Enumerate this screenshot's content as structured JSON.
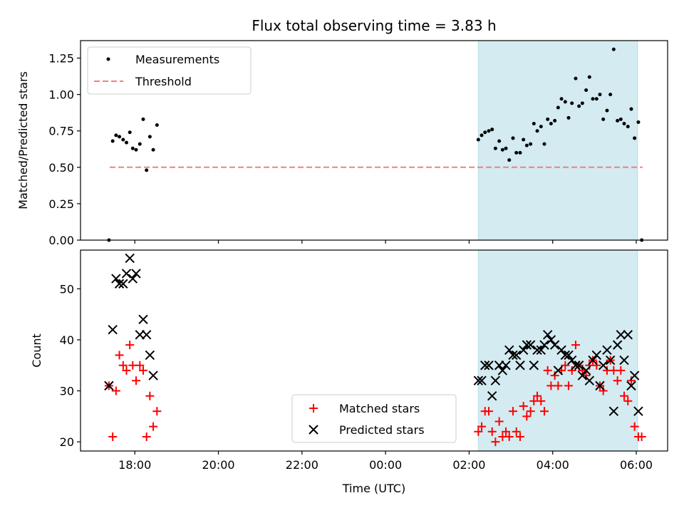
{
  "chart_data": {
    "type": "scatter",
    "title": "Flux total observing time = 3.83 h",
    "xlabel": "Time (UTC)",
    "x_ticks": [
      "18:00",
      "20:00",
      "22:00",
      "00:00",
      "02:00",
      "04:00",
      "06:00"
    ],
    "x_tick_hours": [
      18,
      20,
      22,
      24,
      26,
      28,
      30
    ],
    "xlim_hours": [
      16.7,
      30.75
    ],
    "shaded_interval_hours": [
      26.22,
      30.03
    ],
    "shade_color": "#d3ebf1",
    "panels": [
      {
        "ylabel": "Matched/Predicted stars",
        "ylim": [
          0,
          1.37
        ],
        "y_ticks": [
          "0.00",
          "0.25",
          "0.50",
          "0.75",
          "1.00",
          "1.25"
        ],
        "y_tick_values": [
          0,
          0.25,
          0.5,
          0.75,
          1.0,
          1.25
        ],
        "legend_position": "upper-left",
        "legend": [
          "Measurements",
          "Threshold"
        ],
        "threshold": {
          "name": "Threshold",
          "value": 0.5,
          "x_range_hours": [
            17.4,
            30.15
          ],
          "color": "#f08080",
          "style": "dashed"
        },
        "series": [
          {
            "name": "Measurements",
            "marker": "dot",
            "color": "#000000",
            "points": [
              [
                17.38,
                0.0
              ],
              [
                17.47,
                0.68
              ],
              [
                17.55,
                0.72
              ],
              [
                17.63,
                0.71
              ],
              [
                17.72,
                0.69
              ],
              [
                17.8,
                0.67
              ],
              [
                17.88,
                0.74
              ],
              [
                17.95,
                0.63
              ],
              [
                18.03,
                0.62
              ],
              [
                18.12,
                0.66
              ],
              [
                18.2,
                0.83
              ],
              [
                18.28,
                0.48
              ],
              [
                18.36,
                0.71
              ],
              [
                18.44,
                0.62
              ],
              [
                18.53,
                0.79
              ],
              [
                26.22,
                0.69
              ],
              [
                26.3,
                0.72
              ],
              [
                26.38,
                0.74
              ],
              [
                26.47,
                0.75
              ],
              [
                26.55,
                0.76
              ],
              [
                26.63,
                0.63
              ],
              [
                26.72,
                0.68
              ],
              [
                26.8,
                0.62
              ],
              [
                26.88,
                0.63
              ],
              [
                26.96,
                0.55
              ],
              [
                27.05,
                0.7
              ],
              [
                27.13,
                0.6
              ],
              [
                27.22,
                0.6
              ],
              [
                27.3,
                0.69
              ],
              [
                27.38,
                0.65
              ],
              [
                27.47,
                0.66
              ],
              [
                27.55,
                0.8
              ],
              [
                27.63,
                0.75
              ],
              [
                27.72,
                0.78
              ],
              [
                27.8,
                0.66
              ],
              [
                27.88,
                0.83
              ],
              [
                27.96,
                0.8
              ],
              [
                28.05,
                0.82
              ],
              [
                28.13,
                0.91
              ],
              [
                28.21,
                0.97
              ],
              [
                28.3,
                0.95
              ],
              [
                28.38,
                0.84
              ],
              [
                28.46,
                0.94
              ],
              [
                28.55,
                1.11
              ],
              [
                28.63,
                0.92
              ],
              [
                28.71,
                0.94
              ],
              [
                28.8,
                1.03
              ],
              [
                28.88,
                1.12
              ],
              [
                28.96,
                0.97
              ],
              [
                29.05,
                0.97
              ],
              [
                29.13,
                1.0
              ],
              [
                29.21,
                0.83
              ],
              [
                29.3,
                0.89
              ],
              [
                29.38,
                1.0
              ],
              [
                29.46,
                1.31
              ],
              [
                29.55,
                0.82
              ],
              [
                29.63,
                0.83
              ],
              [
                29.71,
                0.8
              ],
              [
                29.8,
                0.78
              ],
              [
                29.88,
                0.9
              ],
              [
                29.96,
                0.7
              ],
              [
                30.05,
                0.81
              ],
              [
                30.13,
                0.0
              ]
            ]
          }
        ]
      },
      {
        "ylabel": "Count",
        "ylim": [
          18.2,
          57.6
        ],
        "y_ticks": [
          "20",
          "30",
          "40",
          "50"
        ],
        "y_tick_values": [
          20,
          30,
          40,
          50
        ],
        "legend_position": "lower-center",
        "legend": [
          "Matched stars",
          "Predicted stars"
        ],
        "series": [
          {
            "name": "Matched stars",
            "marker": "plus",
            "color": "#ff0000",
            "points": [
              [
                17.38,
                31
              ],
              [
                17.47,
                21
              ],
              [
                17.55,
                30
              ],
              [
                17.63,
                37
              ],
              [
                17.72,
                35
              ],
              [
                17.8,
                34
              ],
              [
                17.88,
                39
              ],
              [
                17.95,
                35
              ],
              [
                18.03,
                32
              ],
              [
                18.12,
                35
              ],
              [
                18.2,
                34
              ],
              [
                18.28,
                21
              ],
              [
                18.36,
                29
              ],
              [
                18.44,
                23
              ],
              [
                18.53,
                26
              ],
              [
                26.22,
                22
              ],
              [
                26.3,
                23
              ],
              [
                26.38,
                26
              ],
              [
                26.47,
                26
              ],
              [
                26.55,
                22
              ],
              [
                26.63,
                20
              ],
              [
                26.72,
                24
              ],
              [
                26.8,
                21
              ],
              [
                26.88,
                22
              ],
              [
                26.96,
                21
              ],
              [
                27.05,
                26
              ],
              [
                27.13,
                22
              ],
              [
                27.22,
                21
              ],
              [
                27.3,
                27
              ],
              [
                27.38,
                25
              ],
              [
                27.47,
                26
              ],
              [
                27.55,
                28
              ],
              [
                27.63,
                29
              ],
              [
                27.72,
                28
              ],
              [
                27.8,
                26
              ],
              [
                27.88,
                34
              ],
              [
                27.96,
                31
              ],
              [
                28.05,
                33
              ],
              [
                28.13,
                31
              ],
              [
                28.21,
                34
              ],
              [
                28.3,
                35
              ],
              [
                28.38,
                31
              ],
              [
                28.46,
                34
              ],
              [
                28.55,
                39
              ],
              [
                28.63,
                35
              ],
              [
                28.71,
                34
              ],
              [
                28.8,
                33
              ],
              [
                28.88,
                35
              ],
              [
                28.96,
                36
              ],
              [
                29.05,
                35
              ],
              [
                29.13,
                31
              ],
              [
                29.21,
                30
              ],
              [
                29.3,
                34
              ],
              [
                29.38,
                36
              ],
              [
                29.46,
                34
              ],
              [
                29.55,
                32
              ],
              [
                29.63,
                34
              ],
              [
                29.71,
                29
              ],
              [
                29.8,
                28
              ],
              [
                29.88,
                32
              ],
              [
                29.96,
                23
              ],
              [
                30.05,
                21
              ],
              [
                30.13,
                21
              ]
            ]
          },
          {
            "name": "Predicted stars",
            "marker": "x",
            "color": "#000000",
            "points": [
              [
                17.38,
                31
              ],
              [
                17.47,
                42
              ],
              [
                17.55,
                52
              ],
              [
                17.63,
                51
              ],
              [
                17.72,
                51
              ],
              [
                17.8,
                53
              ],
              [
                17.88,
                56
              ],
              [
                17.95,
                52
              ],
              [
                18.03,
                53
              ],
              [
                18.12,
                41
              ],
              [
                18.2,
                44
              ],
              [
                18.28,
                41
              ],
              [
                18.36,
                37
              ],
              [
                18.44,
                33
              ],
              [
                26.22,
                32
              ],
              [
                26.3,
                32
              ],
              [
                26.38,
                35
              ],
              [
                26.47,
                35
              ],
              [
                26.55,
                29
              ],
              [
                26.63,
                32
              ],
              [
                26.72,
                35
              ],
              [
                26.8,
                34
              ],
              [
                26.88,
                35
              ],
              [
                26.96,
                38
              ],
              [
                27.05,
                37
              ],
              [
                27.13,
                37
              ],
              [
                27.22,
                35
              ],
              [
                27.3,
                38
              ],
              [
                27.38,
                39
              ],
              [
                27.47,
                39
              ],
              [
                27.55,
                35
              ],
              [
                27.63,
                38
              ],
              [
                27.72,
                38
              ],
              [
                27.8,
                39
              ],
              [
                27.88,
                41
              ],
              [
                27.96,
                40
              ],
              [
                28.05,
                39
              ],
              [
                28.13,
                34
              ],
              [
                28.21,
                38
              ],
              [
                28.3,
                37
              ],
              [
                28.38,
                37
              ],
              [
                28.46,
                36
              ],
              [
                28.55,
                35
              ],
              [
                28.63,
                35
              ],
              [
                28.71,
                33
              ],
              [
                28.8,
                34
              ],
              [
                28.88,
                32
              ],
              [
                28.96,
                36
              ],
              [
                29.05,
                37
              ],
              [
                29.13,
                31
              ],
              [
                29.21,
                35
              ],
              [
                29.3,
                38
              ],
              [
                29.38,
                36
              ],
              [
                29.46,
                26
              ],
              [
                29.55,
                39
              ],
              [
                29.63,
                41
              ],
              [
                29.71,
                36
              ],
              [
                29.8,
                41
              ],
              [
                29.88,
                31
              ],
              [
                29.96,
                33
              ],
              [
                30.05,
                26
              ]
            ]
          }
        ]
      }
    ]
  }
}
